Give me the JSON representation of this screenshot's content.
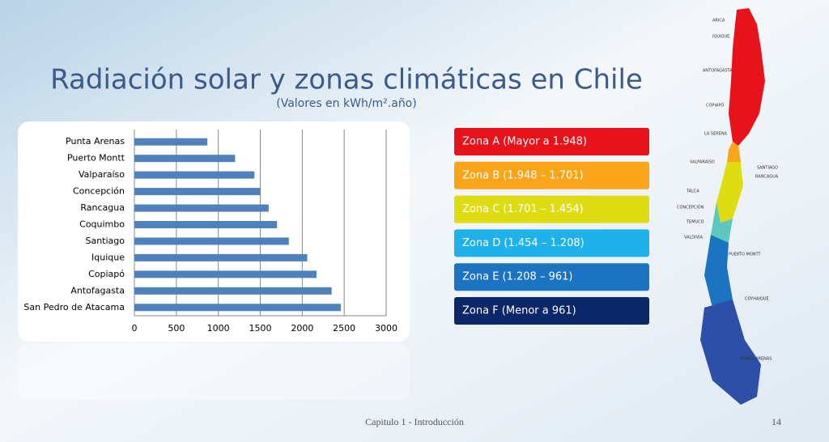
{
  "chart_data": {
    "type": "hbar",
    "categories": [
      "Punta Arenas",
      "Puerto Montt",
      "Valparaíso",
      "Concepción",
      "Rancagua",
      "Coquimbo",
      "Santiago",
      "Iquique",
      "Copiapó",
      "Antofagasta",
      "San Pedro de Atacama"
    ],
    "values": [
      870,
      1200,
      1430,
      1500,
      1600,
      1700,
      1840,
      2060,
      2170,
      2350,
      2460
    ],
    "color": "#4f81bd",
    "xlim": [
      0,
      3000
    ],
    "xticks": [
      0,
      500,
      1000,
      1500,
      2000,
      2500,
      3000
    ],
    "grid": true
  },
  "title": "Radiación solar y zonas climáticas en Chile",
  "subtitle": "(Valores en kWh/m².año)",
  "zones": [
    {
      "label": "Zona A (Mayor a 1.948)",
      "color": "#e8121a"
    },
    {
      "label": "Zona B (1.948 – 1.701)",
      "color": "#f9a51a"
    },
    {
      "label": "Zona C (1.701 – 1.454)",
      "color": "#dfdc12"
    },
    {
      "label": "Zona D (1.454 – 1.208)",
      "color": "#1fb2ea"
    },
    {
      "label": "Zona E (1.208 – 961)",
      "color": "#1b73c2"
    },
    {
      "label": "Zona F (Menor a 961)",
      "color": "#0b2767"
    }
  ],
  "map_labels": [
    "ARICA",
    "IQUIQUE",
    "ANTOFAGASTA",
    "COPIAPÓ",
    "LA SERENA",
    "VALPARAÍSO",
    "SANTIAGO",
    "RANCAGUA",
    "TALCA",
    "CONCEPCIÓN",
    "TEMUCO",
    "VALDIVIA",
    "PUERTO MONTT",
    "COYHAIQUE",
    "PUNTA ARENAS"
  ],
  "footer": "Capitulo 1 - Introducción",
  "page_number": "14"
}
